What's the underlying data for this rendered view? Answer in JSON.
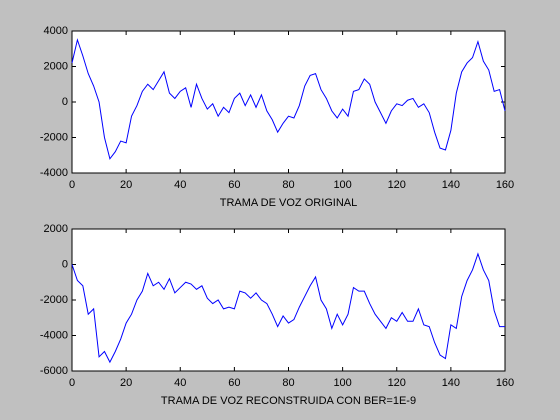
{
  "chart_data": [
    {
      "type": "line",
      "xlabel": "TRAMA DE VOZ ORIGINAL",
      "color": "#0000ff",
      "x": [
        0,
        2,
        4,
        6,
        8,
        10,
        12,
        14,
        16,
        18,
        20,
        22,
        24,
        26,
        28,
        30,
        32,
        34,
        36,
        38,
        40,
        42,
        44,
        46,
        48,
        50,
        52,
        54,
        56,
        58,
        60,
        62,
        64,
        66,
        68,
        70,
        72,
        74,
        76,
        78,
        80,
        82,
        84,
        86,
        88,
        90,
        92,
        94,
        96,
        98,
        100,
        102,
        104,
        106,
        108,
        110,
        112,
        114,
        116,
        118,
        120,
        122,
        124,
        126,
        128,
        130,
        132,
        134,
        136,
        138,
        140,
        142,
        144,
        146,
        148,
        150,
        152,
        154,
        156,
        158,
        160
      ],
      "values": [
        2200,
        3500,
        2600,
        1600,
        900,
        0,
        -2000,
        -3200,
        -2800,
        -2200,
        -2300,
        -800,
        -200,
        600,
        1000,
        700,
        1200,
        1700,
        500,
        200,
        600,
        800,
        -300,
        1000,
        200,
        -400,
        -100,
        -800,
        -300,
        -600,
        200,
        500,
        -200,
        400,
        -300,
        400,
        -500,
        -1000,
        -1700,
        -1200,
        -800,
        -900,
        -200,
        900,
        1500,
        1600,
        700,
        200,
        -500,
        -900,
        -400,
        -800,
        600,
        700,
        1300,
        1000,
        0,
        -600,
        -1200,
        -500,
        -100,
        -200,
        100,
        200,
        -300,
        -100,
        -600,
        -1700,
        -2600,
        -2700,
        -1600,
        500,
        1700,
        2200,
        2500,
        3400,
        2300,
        1800,
        600,
        700,
        -500
      ],
      "xlim": [
        0,
        160
      ],
      "xticks": [
        0,
        20,
        40,
        60,
        80,
        100,
        120,
        140,
        160
      ],
      "ylim": [
        -4000,
        4000
      ],
      "yticks": [
        -4000,
        -2000,
        0,
        2000,
        4000
      ]
    },
    {
      "type": "line",
      "xlabel": "TRAMA DE VOZ RECONSTRUIDA CON BER=1E-9",
      "color": "#0000ff",
      "x": [
        0,
        2,
        4,
        6,
        8,
        10,
        12,
        14,
        16,
        18,
        20,
        22,
        24,
        26,
        28,
        30,
        32,
        34,
        36,
        38,
        40,
        42,
        44,
        46,
        48,
        50,
        52,
        54,
        56,
        58,
        60,
        62,
        64,
        66,
        68,
        70,
        72,
        74,
        76,
        78,
        80,
        82,
        84,
        86,
        88,
        90,
        92,
        94,
        96,
        98,
        100,
        102,
        104,
        106,
        108,
        110,
        112,
        114,
        116,
        118,
        120,
        122,
        124,
        126,
        128,
        130,
        132,
        134,
        136,
        138,
        140,
        142,
        144,
        146,
        148,
        150,
        152,
        154,
        156,
        158,
        160
      ],
      "values": [
        0,
        -900,
        -1200,
        -2800,
        -2500,
        -5200,
        -4900,
        -5500,
        -4900,
        -4200,
        -3300,
        -2800,
        -2000,
        -1500,
        -500,
        -1200,
        -1000,
        -1400,
        -800,
        -1600,
        -1300,
        -1000,
        -1100,
        -1400,
        -1200,
        -1900,
        -2200,
        -2000,
        -2500,
        -2400,
        -2500,
        -1500,
        -1600,
        -1900,
        -1600,
        -2000,
        -2200,
        -2800,
        -3500,
        -2900,
        -3300,
        -3100,
        -2400,
        -1800,
        -1200,
        -700,
        -2000,
        -2500,
        -3600,
        -2800,
        -3400,
        -2800,
        -1300,
        -1500,
        -1500,
        -2200,
        -2800,
        -3200,
        -3600,
        -3000,
        -3200,
        -2700,
        -3200,
        -3200,
        -2500,
        -3400,
        -3500,
        -4400,
        -5100,
        -5300,
        -3400,
        -3600,
        -1800,
        -900,
        -300,
        600,
        -300,
        -900,
        -2600,
        -3500,
        -3500
      ],
      "xlim": [
        0,
        160
      ],
      "xticks": [
        0,
        20,
        40,
        60,
        80,
        100,
        120,
        140,
        160
      ],
      "ylim": [
        -6000,
        2000
      ],
      "yticks": [
        -6000,
        -4000,
        -2000,
        0,
        2000
      ]
    }
  ]
}
